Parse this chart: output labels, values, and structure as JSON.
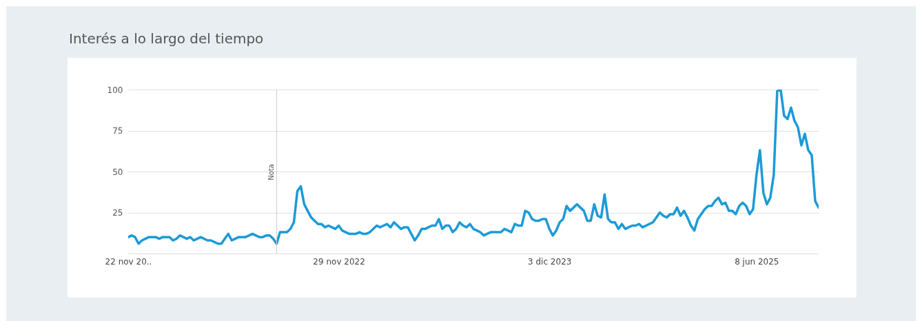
{
  "chart_data": {
    "type": "line",
    "title": "Interés a lo largo del tiempo",
    "categories": [
      "22 nov 20..",
      null,
      null,
      null,
      null,
      null,
      null,
      null,
      null,
      null,
      null,
      null,
      null,
      null,
      null,
      null,
      null,
      null,
      null,
      null,
      null,
      null,
      null,
      null,
      null,
      null,
      null,
      null,
      null,
      null,
      null,
      null,
      null,
      null,
      null,
      null,
      null,
      null,
      null,
      null,
      null,
      null,
      null,
      null,
      null,
      null,
      null,
      null,
      null,
      null,
      null,
      null,
      null,
      null,
      null,
      null,
      null,
      null,
      null,
      null,
      null,
      "29 nov 2022",
      null,
      null,
      null,
      null,
      null,
      null,
      null,
      null,
      null,
      null,
      null,
      null,
      null,
      null,
      null,
      null,
      null,
      null,
      null,
      null,
      null,
      null,
      null,
      null,
      null,
      null,
      null,
      null,
      null,
      null,
      null,
      null,
      null,
      null,
      null,
      null,
      null,
      null,
      null,
      null,
      null,
      null,
      null,
      null,
      null,
      null,
      null,
      null,
      null,
      null,
      null,
      null,
      null,
      null,
      null,
      null,
      null,
      null,
      null,
      null,
      "3 dic 2023",
      null,
      null,
      null,
      null,
      null,
      null,
      null,
      null,
      null,
      null,
      null,
      null,
      null,
      null,
      null,
      null,
      null,
      null,
      null,
      null,
      null,
      null,
      null,
      null,
      null,
      null,
      null,
      null,
      null,
      null,
      null,
      null,
      null,
      null,
      null,
      null,
      null,
      null,
      null,
      null,
      null,
      null,
      null,
      null,
      null,
      null,
      null,
      null,
      null,
      null,
      null,
      null,
      null,
      null,
      null,
      null,
      null,
      null,
      null,
      "8 jun 2025",
      null,
      null,
      null,
      null,
      null,
      null,
      null,
      null,
      null,
      null,
      null,
      null,
      null,
      null,
      null,
      null,
      null,
      null
    ],
    "series": [
      {
        "color": "#1c9ad6",
        "values": [
          10,
          11,
          10,
          6,
          8,
          9,
          10,
          10,
          10,
          9,
          10,
          10,
          10,
          8,
          9,
          11,
          10,
          9,
          10,
          8,
          9,
          10,
          9,
          8,
          8,
          7,
          6,
          6,
          9,
          12,
          8,
          9,
          10,
          10,
          10,
          11,
          12,
          11,
          10,
          10,
          11,
          11,
          9,
          6,
          13,
          13,
          13,
          15,
          19,
          38,
          41,
          30,
          26,
          22,
          20,
          18,
          18,
          16,
          17,
          16,
          15,
          17,
          14,
          13,
          12,
          12,
          12,
          13,
          12,
          12,
          13,
          15,
          17,
          16,
          17,
          18,
          16,
          19,
          17,
          15,
          16,
          16,
          12,
          8,
          11,
          15,
          15,
          16,
          17,
          17,
          21,
          15,
          17,
          17,
          13,
          15,
          19,
          17,
          16,
          18,
          15,
          14,
          13,
          11,
          12,
          13,
          13,
          13,
          13,
          15,
          14,
          13,
          18,
          17,
          17,
          26,
          25,
          21,
          20,
          20,
          21,
          21,
          15,
          11,
          14,
          19,
          21,
          29,
          26,
          28,
          30,
          28,
          26,
          20,
          20,
          30,
          23,
          22,
          36,
          21,
          19,
          19,
          15,
          18,
          15,
          16,
          17,
          17,
          18,
          16,
          17,
          18,
          19,
          22,
          25,
          23,
          22,
          24,
          24,
          28,
          23,
          26,
          22,
          17,
          14,
          21,
          24,
          27,
          29,
          29,
          32,
          34,
          30,
          31,
          26,
          26,
          24,
          29,
          31,
          29,
          24,
          27,
          48,
          63,
          37,
          30,
          34,
          48,
          99,
          100,
          84,
          82,
          89,
          81,
          77,
          66,
          73,
          63,
          60,
          32,
          28
        ]
      }
    ],
    "ylim": [
      0,
      100
    ],
    "yticks": [
      25,
      50,
      75,
      100
    ],
    "grid": "y",
    "marker": "none",
    "line_style": "solid",
    "annotations": [
      "Nota"
    ]
  }
}
